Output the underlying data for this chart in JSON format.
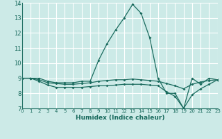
{
  "xlabel": "Humidex (Indice chaleur)",
  "ylabel": "",
  "bg_color": "#cceae7",
  "grid_color": "#ffffff",
  "line_color": "#1a6b5e",
  "xmin": 0,
  "xmax": 23,
  "ymin": 7,
  "ymax": 14,
  "yticks": [
    7,
    8,
    9,
    10,
    11,
    12,
    13,
    14
  ],
  "xticks": [
    0,
    1,
    2,
    3,
    4,
    5,
    6,
    7,
    8,
    9,
    10,
    11,
    12,
    13,
    14,
    15,
    16,
    17,
    18,
    19,
    20,
    21,
    22,
    23
  ],
  "lines": [
    {
      "x": [
        0,
        1,
        2,
        3,
        4,
        5,
        6,
        7,
        8,
        9,
        10,
        11,
        12,
        13,
        14,
        15,
        16,
        17,
        18,
        19,
        20,
        21,
        22,
        23
      ],
      "y": [
        9,
        9,
        9,
        8.8,
        8.7,
        8.7,
        8.7,
        8.8,
        8.8,
        10.2,
        11.3,
        12.2,
        13.0,
        13.9,
        13.3,
        11.7,
        9.0,
        8.0,
        8.0,
        7.0,
        9.0,
        8.6,
        9.0,
        8.9
      ]
    },
    {
      "x": [
        0,
        1,
        2,
        3,
        4,
        5,
        6,
        7,
        8,
        9,
        10,
        11,
        12,
        13,
        14,
        15,
        16,
        17,
        18,
        19,
        20,
        21,
        22,
        23
      ],
      "y": [
        9,
        9,
        8.9,
        8.7,
        8.65,
        8.6,
        8.6,
        8.65,
        8.7,
        8.8,
        8.85,
        8.9,
        8.9,
        8.95,
        8.9,
        8.85,
        8.8,
        8.65,
        8.5,
        8.3,
        8.6,
        8.75,
        8.85,
        8.9
      ]
    },
    {
      "x": [
        0,
        1,
        2,
        3,
        4,
        5,
        6,
        7,
        8,
        9,
        10,
        11,
        12,
        13,
        14,
        15,
        16,
        17,
        18,
        19,
        20,
        21,
        22,
        23
      ],
      "y": [
        9,
        9,
        8.8,
        8.55,
        8.4,
        8.4,
        8.4,
        8.4,
        8.45,
        8.5,
        8.5,
        8.55,
        8.6,
        8.6,
        8.6,
        8.55,
        8.5,
        8.1,
        7.8,
        7.0,
        7.9,
        8.3,
        8.6,
        8.9
      ]
    }
  ]
}
